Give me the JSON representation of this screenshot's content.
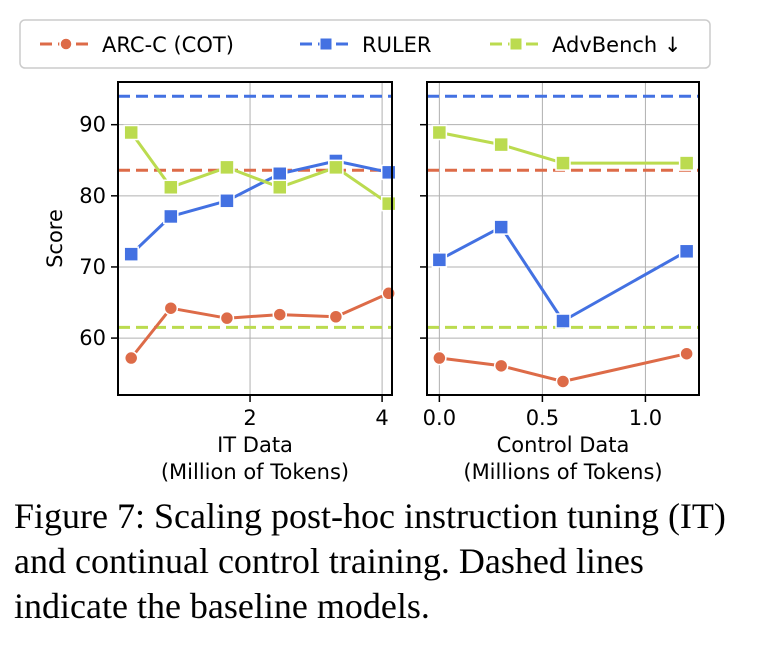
{
  "colors": {
    "arc": "#dd6b48",
    "ruler": "#4371e2",
    "advbench": "#bbdb4f",
    "grid": "#b0b0b0"
  },
  "legend": {
    "items": [
      {
        "label": "ARC-C (COT)",
        "marker": "circle",
        "color": "#dd6b48"
      },
      {
        "label": "RULER",
        "marker": "square",
        "color": "#4371e2"
      },
      {
        "label": "AdvBench ↓",
        "marker": "square",
        "color": "#bbdb4f"
      }
    ]
  },
  "chart_data": [
    {
      "type": "line",
      "ylabel": "Score",
      "xlabel_line1": "IT Data",
      "xlabel_line2": "(Million of Tokens)",
      "xlim": [
        0.0,
        4.15
      ],
      "ylim": [
        52,
        96
      ],
      "xticks": [
        2,
        4
      ],
      "xtick_labels": [
        "2",
        "4"
      ],
      "yticks": [
        60,
        70,
        80,
        90
      ],
      "ytick_labels": [
        "60",
        "70",
        "80",
        "90"
      ],
      "baselines": {
        "ARC-C (COT)": 83.6,
        "RULER": 94.0,
        "AdvBench ↓": 61.5
      },
      "series": [
        {
          "name": "ARC-C (COT)",
          "x": [
            0.2,
            0.8,
            1.65,
            2.45,
            3.3,
            4.1
          ],
          "values": [
            57.2,
            64.2,
            62.8,
            63.3,
            63.0,
            66.3
          ]
        },
        {
          "name": "RULER",
          "x": [
            0.2,
            0.8,
            1.65,
            2.45,
            3.3,
            4.1
          ],
          "values": [
            71.8,
            77.1,
            79.3,
            83.1,
            84.9,
            83.3
          ]
        },
        {
          "name": "AdvBench ↓",
          "x": [
            0.2,
            0.8,
            1.65,
            2.45,
            3.3,
            4.1
          ],
          "values": [
            88.9,
            81.2,
            84.0,
            81.2,
            84.0,
            78.9
          ]
        }
      ]
    },
    {
      "type": "line",
      "ylabel": "",
      "xlabel_line1": "Control Data",
      "xlabel_line2": "(Millions of Tokens)",
      "xlim": [
        -0.06,
        1.26
      ],
      "ylim": [
        52,
        96
      ],
      "xticks": [
        0.0,
        0.5,
        1.0
      ],
      "xtick_labels": [
        "0.0",
        "0.5",
        "1.0"
      ],
      "yticks": [
        60,
        70,
        80,
        90
      ],
      "ytick_labels": [],
      "baselines": {
        "ARC-C (COT)": 83.6,
        "RULER": 94.0,
        "AdvBench ↓": 61.5
      },
      "series": [
        {
          "name": "ARC-C (COT)",
          "x": [
            0.0,
            0.3,
            0.6,
            1.2
          ],
          "values": [
            57.2,
            56.1,
            53.9,
            57.8
          ]
        },
        {
          "name": "RULER",
          "x": [
            0.0,
            0.3,
            0.6,
            1.2
          ],
          "values": [
            71.0,
            75.6,
            62.4,
            72.2
          ]
        },
        {
          "name": "AdvBench ↓",
          "x": [
            0.0,
            0.3,
            0.6,
            1.2
          ],
          "values": [
            88.9,
            87.2,
            84.6,
            84.6
          ]
        }
      ]
    }
  ],
  "caption": "Figure 7: Scaling post-hoc instruction tuning (IT) and continual control training. Dashed lines indicate the baseline models."
}
